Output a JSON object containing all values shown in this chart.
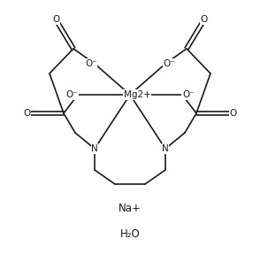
{
  "background": "#ffffff",
  "bond_color": "#1a1a1a",
  "text_color": "#1a1a1a",
  "mg_label": "Mg2+",
  "na_label": "Na+",
  "water_label": "H₂O",
  "lw": 1.2
}
